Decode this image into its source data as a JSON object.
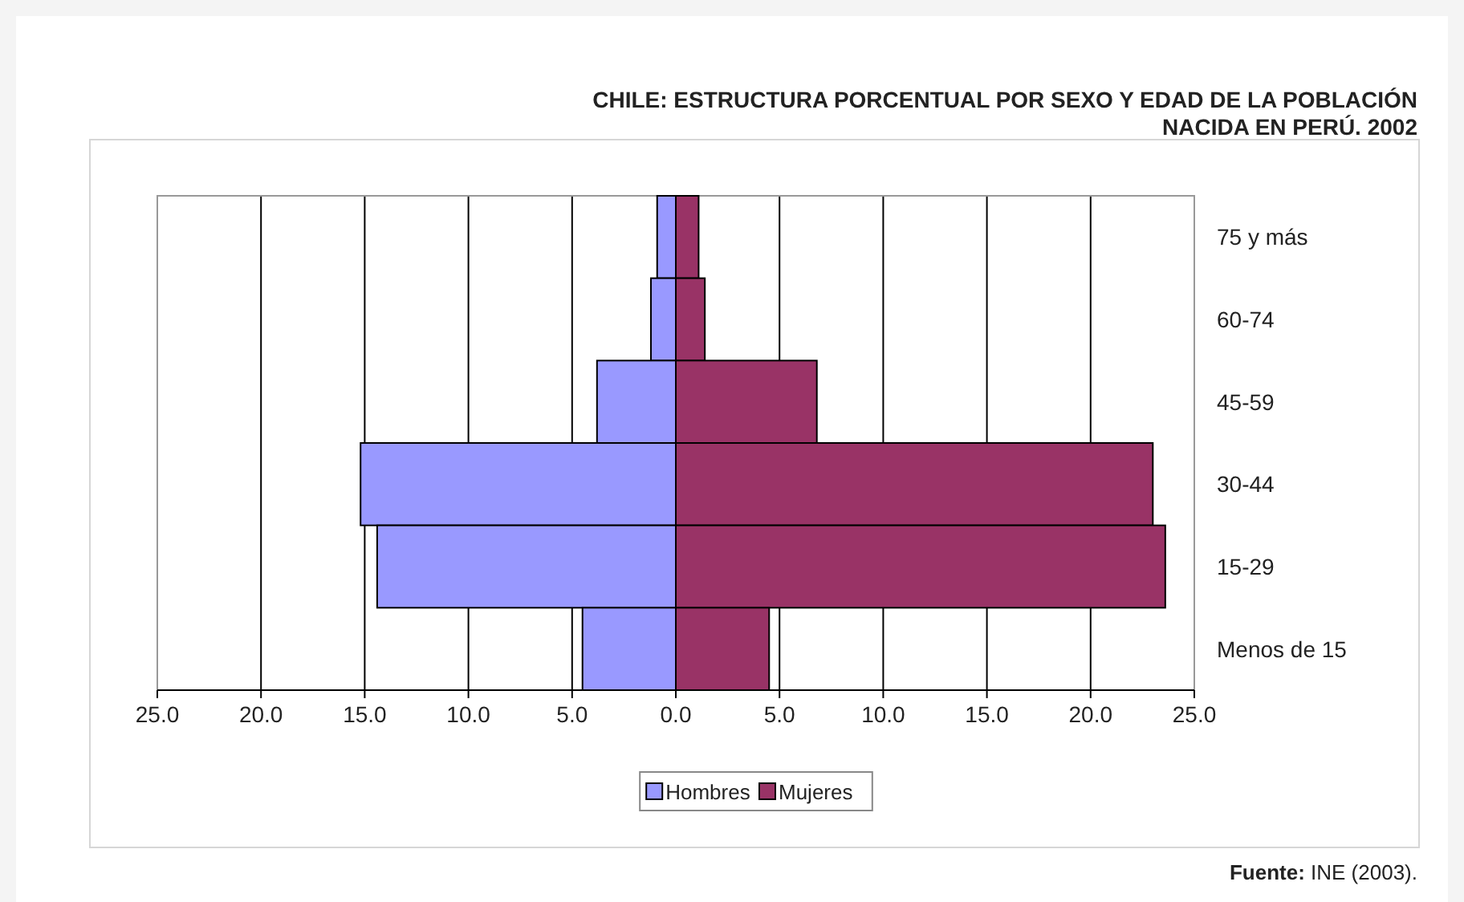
{
  "chart_data": {
    "type": "bar",
    "title": "CHILE: ESTRUCTURA PORCENTUAL POR SEXO Y EDAD DE LA POBLACIÓN NACIDA EN PERÚ. 2002",
    "orientation": "horizontal",
    "stacked": true,
    "categories": [
      "75 y más",
      "60-74",
      "45-59",
      "30-44",
      "15-29",
      "Menos de 15"
    ],
    "series": [
      {
        "name": "Hombres",
        "color": "#9999ff",
        "values": [
          -0.9,
          -1.2,
          -3.8,
          -15.2,
          -14.4,
          -4.5
        ]
      },
      {
        "name": "Mujeres",
        "color": "#993366",
        "values": [
          1.1,
          1.4,
          6.8,
          23.0,
          23.6,
          4.5
        ]
      }
    ],
    "xlim": [
      -25,
      25
    ],
    "xticks": [
      {
        "value": -25,
        "label": "25.0"
      },
      {
        "value": -20,
        "label": "20.0"
      },
      {
        "value": -15,
        "label": "15.0"
      },
      {
        "value": -10,
        "label": "10.0"
      },
      {
        "value": -5,
        "label": "5.0"
      },
      {
        "value": 0,
        "label": "0.0"
      },
      {
        "value": 5,
        "label": "5.0"
      },
      {
        "value": 10,
        "label": "10.0"
      },
      {
        "value": 15,
        "label": "15.0"
      },
      {
        "value": 20,
        "label": "20.0"
      },
      {
        "value": 25,
        "label": "25.0"
      }
    ],
    "grid": "x",
    "legend": "bottom",
    "annotations": [
      "Fuente: INE (2003)."
    ]
  }
}
